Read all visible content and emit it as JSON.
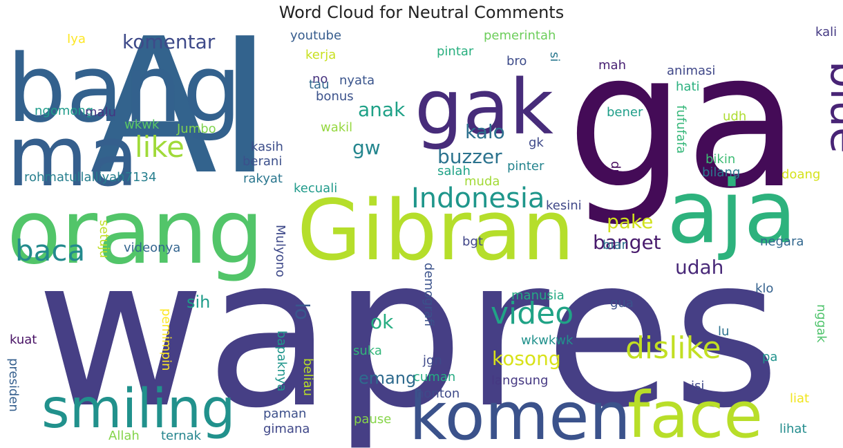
{
  "chart_data": {
    "type": "wordcloud",
    "title": "Word Cloud for Neutral Comments",
    "words": [
      {
        "text": "wapres",
        "color": "#463f85"
      },
      {
        "text": "AI",
        "color": "#33638d"
      },
      {
        "text": "ga",
        "color": "#440b57"
      },
      {
        "text": "gak",
        "color": "#472c7a"
      },
      {
        "text": "bang",
        "color": "#33618d"
      },
      {
        "text": "ma",
        "color": "#355f8d"
      },
      {
        "text": "orang",
        "color": "#52c569"
      },
      {
        "text": "Gibran",
        "color": "#b5de2b"
      },
      {
        "text": "aja",
        "color": "#2db27d"
      },
      {
        "text": "komen",
        "color": "#3b528b"
      },
      {
        "text": "face",
        "color": "#b8de29"
      },
      {
        "text": "smiling",
        "color": "#21918c"
      },
      {
        "text": "blue",
        "color": "#482475"
      },
      {
        "text": "Indonesia",
        "color": "#1f968b"
      },
      {
        "text": "video",
        "color": "#20a386"
      },
      {
        "text": "dislike",
        "color": "#c2df23"
      },
      {
        "text": "baca",
        "color": "#238a8d"
      },
      {
        "text": "like",
        "color": "#a0da39"
      },
      {
        "text": "komentar",
        "color": "#3e4a89"
      },
      {
        "text": "anak",
        "color": "#1fa187"
      },
      {
        "text": "kalo",
        "color": "#2d708e"
      },
      {
        "text": "buzzer",
        "color": "#2c738e"
      },
      {
        "text": "gw",
        "color": "#24868e"
      },
      {
        "text": "pake",
        "color": "#d0e11c"
      },
      {
        "text": "banget",
        "color": "#481a6c"
      },
      {
        "text": "udah",
        "color": "#482878"
      },
      {
        "text": "kosong",
        "color": "#d8e219"
      },
      {
        "text": "emang",
        "color": "#2f6b8e"
      },
      {
        "text": "sih",
        "color": "#1e9c89"
      },
      {
        "text": "lo",
        "color": "#38588c"
      },
      {
        "text": "ok",
        "color": "#26ad81"
      },
      {
        "text": "youtube",
        "color": "#365c8d"
      },
      {
        "text": "pemerintah",
        "color": "#6ccd5a"
      },
      {
        "text": "pintar",
        "color": "#29af7f"
      },
      {
        "text": "kerja",
        "color": "#c8e020"
      },
      {
        "text": "Iya",
        "color": "#fde725"
      },
      {
        "text": "no",
        "color": "#46327e"
      },
      {
        "text": "nyata",
        "color": "#3a548c"
      },
      {
        "text": "tau",
        "color": "#31688e"
      },
      {
        "text": "bonus",
        "color": "#3b528b"
      },
      {
        "text": "bro",
        "color": "#3e4c8a"
      },
      {
        "text": "si",
        "color": "#2a788e"
      },
      {
        "text": "mah",
        "color": "#482173"
      },
      {
        "text": "kali",
        "color": "#443983"
      },
      {
        "text": "animasi",
        "color": "#3f4788"
      },
      {
        "text": "hati",
        "color": "#2ab07f"
      },
      {
        "text": "ngomong",
        "color": "#1e9b8a"
      },
      {
        "text": "malu",
        "color": "#453581"
      },
      {
        "text": "wkwk",
        "color": "#5ac864"
      },
      {
        "text": "Jumbo",
        "color": "#7fd34e"
      },
      {
        "text": "wakil",
        "color": "#95d840"
      },
      {
        "text": "udh",
        "color": "#addc30"
      },
      {
        "text": "bener",
        "color": "#1f9e89"
      },
      {
        "text": "fufufafa",
        "color": "#35b779"
      },
      {
        "text": "kasih",
        "color": "#3d4e8a"
      },
      {
        "text": "gk",
        "color": "#3e4989"
      },
      {
        "text": "berani",
        "color": "#3c508b"
      },
      {
        "text": "pinter",
        "color": "#25848e"
      },
      {
        "text": "salah",
        "color": "#1fa287"
      },
      {
        "text": "bikin",
        "color": "#3dbc74"
      },
      {
        "text": "dr",
        "color": "#460a5d"
      },
      {
        "text": "bilang",
        "color": "#2a788e"
      },
      {
        "text": "rohmatullailiyah7134",
        "color": "#277f8e"
      },
      {
        "text": "rakyat",
        "color": "#2a768e"
      },
      {
        "text": "muda",
        "color": "#a2da37"
      },
      {
        "text": "doang",
        "color": "#d5e21a"
      },
      {
        "text": "kecuali",
        "color": "#1f9a8a"
      },
      {
        "text": "kesini",
        "color": "#3f4788"
      },
      {
        "text": "setuju",
        "color": "#c0df25"
      },
      {
        "text": "videonya",
        "color": "#32648e"
      },
      {
        "text": "Mulyono",
        "color": "#3e4989"
      },
      {
        "text": "bgt",
        "color": "#404588"
      },
      {
        "text": "biar",
        "color": "#2b748e"
      },
      {
        "text": "negara",
        "color": "#31678e"
      },
      {
        "text": "demografi",
        "color": "#3b528b"
      },
      {
        "text": "manusia",
        "color": "#23a983"
      },
      {
        "text": "klo",
        "color": "#34618d"
      },
      {
        "text": "gua",
        "color": "#3b528b"
      },
      {
        "text": "lu",
        "color": "#2c718e"
      },
      {
        "text": "nggak",
        "color": "#4ec36b"
      },
      {
        "text": "kuat",
        "color": "#471164"
      },
      {
        "text": "pemimpin",
        "color": "#fde725"
      },
      {
        "text": "bapaknya",
        "color": "#1f958b"
      },
      {
        "text": "beliau",
        "color": "#bade28"
      },
      {
        "text": "suka",
        "color": "#32b67a"
      },
      {
        "text": "jgn",
        "color": "#3e4989"
      },
      {
        "text": "wkwkwk",
        "color": "#21918c"
      },
      {
        "text": "pa",
        "color": "#20928c"
      },
      {
        "text": "cuman",
        "color": "#25ab82"
      },
      {
        "text": "langsung",
        "color": "#453882"
      },
      {
        "text": "isi",
        "color": "#3f4889"
      },
      {
        "text": "presiden",
        "color": "#355f8d"
      },
      {
        "text": "nonton",
        "color": "#3e4a89"
      },
      {
        "text": "liat",
        "color": "#f1e51d"
      },
      {
        "text": "paman",
        "color": "#3c4f8a"
      },
      {
        "text": "pause",
        "color": "#86d549"
      },
      {
        "text": "Allah",
        "color": "#84d44b"
      },
      {
        "text": "ternak",
        "color": "#25858e"
      },
      {
        "text": "gimana",
        "color": "#3f4788"
      },
      {
        "text": "lihat",
        "color": "#228c8d"
      }
    ]
  }
}
